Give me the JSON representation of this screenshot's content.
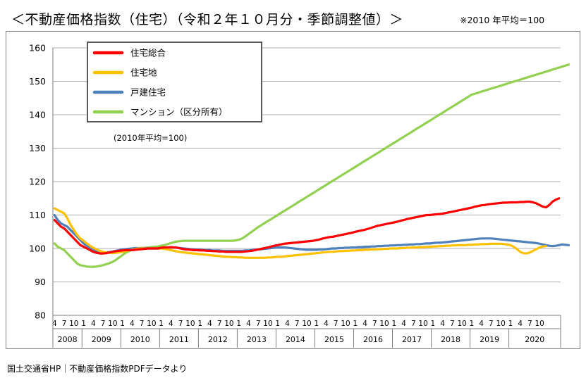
{
  "header": {
    "title": "＜不動産価格指数（住宅）（令和２年１０月分・季節調整値）＞",
    "base_note": "※2010 年平均＝100"
  },
  "footer": {
    "source": "国土交通省HP｜不動産価格指数PDFデータより"
  },
  "chart_data": {
    "type": "line",
    "title": "",
    "inner_note": "(2010年平均=100)",
    "ylim": [
      80,
      160
    ],
    "yticks": [
      80,
      90,
      100,
      110,
      120,
      130,
      140,
      150,
      160
    ],
    "grid": "horizontal",
    "legend_position": "top-left",
    "months_per_year_ticks": [
      "1",
      "4",
      "7",
      "10"
    ],
    "first_month_label": "4",
    "years": [
      "2008",
      "2009",
      "2010",
      "2011",
      "2012",
      "2013",
      "2014",
      "2015",
      "2016",
      "2017",
      "2018",
      "2019",
      "2020"
    ],
    "x_start": "2008-04",
    "x_end": "2020-10",
    "series": [
      {
        "name": "住宅総合",
        "color": "#ff0000",
        "values": [
          108.5,
          107.5,
          106.5,
          106,
          105,
          104,
          103,
          102,
          101,
          100.5,
          100,
          99.5,
          99,
          98.7,
          98.5,
          98.5,
          98.6,
          98.8,
          99,
          99.2,
          99.3,
          99.4,
          99.5,
          99.5,
          99.5,
          99.6,
          99.7,
          99.8,
          99.9,
          100,
          100,
          100,
          100,
          100.2,
          100.3,
          100.3,
          100.4,
          100.3,
          100.2,
          100,
          99.8,
          99.7,
          99.6,
          99.5,
          99.5,
          99.4,
          99.4,
          99.3,
          99.3,
          99.2,
          99.2,
          99.1,
          99.1,
          99,
          99,
          99,
          99,
          99,
          99,
          99.1,
          99.2,
          99.3,
          99.5,
          99.7,
          99.9,
          100.1,
          100.3,
          100.6,
          100.8,
          101,
          101.2,
          101.4,
          101.5,
          101.6,
          101.7,
          101.8,
          101.9,
          102,
          102.1,
          102.2,
          102.3,
          102.5,
          102.7,
          103,
          103.2,
          103.4,
          103.5,
          103.7,
          103.9,
          104.1,
          104.3,
          104.5,
          104.7,
          105,
          105.2,
          105.4,
          105.6,
          105.9,
          106.2,
          106.5,
          106.8,
          107,
          107.2,
          107.4,
          107.6,
          107.8,
          108,
          108.3,
          108.5,
          108.8,
          109,
          109.2,
          109.4,
          109.6,
          109.8,
          110,
          110,
          110.1,
          110.2,
          110.3,
          110.4,
          110.6,
          110.8,
          111,
          111.2,
          111.4,
          111.6,
          111.8,
          112,
          112.2,
          112.5,
          112.7,
          112.9,
          113,
          113.2,
          113.3,
          113.4,
          113.5,
          113.6,
          113.7,
          113.7,
          113.8,
          113.8,
          113.8,
          113.9,
          113.9,
          114,
          114,
          113.8,
          113.5,
          113,
          112.5,
          112.3,
          113,
          114,
          114.6,
          115
        ]
      },
      {
        "name": "住宅地",
        "color": "#ffc000",
        "values": [
          112,
          111.5,
          111,
          110.5,
          109,
          107,
          105.5,
          104,
          103,
          102.3,
          101.5,
          100.8,
          100.2,
          99.7,
          99.3,
          99,
          98.8,
          98.7,
          98.6,
          98.7,
          98.8,
          99,
          99.2,
          99.4,
          99.6,
          99.8,
          100,
          100,
          100,
          100,
          100,
          100,
          100,
          100,
          99.9,
          99.7,
          99.5,
          99.3,
          99.1,
          98.9,
          98.8,
          98.7,
          98.6,
          98.5,
          98.4,
          98.3,
          98.2,
          98.1,
          98,
          97.9,
          97.8,
          97.7,
          97.6,
          97.5,
          97.5,
          97.4,
          97.4,
          97.3,
          97.3,
          97.2,
          97.2,
          97.2,
          97.2,
          97.2,
          97.2,
          97.2,
          97.3,
          97.3,
          97.4,
          97.5,
          97.5,
          97.6,
          97.7,
          97.8,
          97.9,
          98,
          98.1,
          98.2,
          98.3,
          98.4,
          98.5,
          98.6,
          98.7,
          98.8,
          98.9,
          99,
          99,
          99.1,
          99.2,
          99.2,
          99.3,
          99.3,
          99.4,
          99.4,
          99.5,
          99.5,
          99.6,
          99.6,
          99.7,
          99.7,
          99.8,
          99.8,
          99.9,
          99.9,
          100,
          100,
          100,
          100.1,
          100.1,
          100.2,
          100.2,
          100.3,
          100.3,
          100.4,
          100.4,
          100.5,
          100.5,
          100.6,
          100.6,
          100.7,
          100.7,
          100.8,
          100.8,
          100.9,
          100.9,
          101,
          101,
          101,
          101.1,
          101.1,
          101.2,
          101.2,
          101.3,
          101.3,
          101.3,
          101.4,
          101.4,
          101.4,
          101.4,
          101.3,
          101.2,
          101,
          100.5,
          99.8,
          99,
          98.6,
          98.5,
          98.8,
          99.3,
          99.8,
          100.3,
          100.6,
          100.7
        ]
      },
      {
        "name": "戸建住宅",
        "color": "#4f81bd",
        "values": [
          110,
          108.5,
          107.5,
          107,
          106.5,
          105.5,
          104.5,
          103.5,
          102.5,
          101.5,
          100.8,
          100,
          99.5,
          99.2,
          99,
          98.8,
          98.8,
          98.9,
          99.1,
          99.3,
          99.5,
          99.7,
          99.8,
          99.9,
          100,
          100.1,
          100.1,
          100.1,
          100.1,
          100,
          100,
          100,
          100,
          100.1,
          100.2,
          100.3,
          100.3,
          100.3,
          100.2,
          100.1,
          100,
          99.9,
          99.8,
          99.7,
          99.6,
          99.6,
          99.5,
          99.5,
          99.5,
          99.4,
          99.4,
          99.4,
          99.3,
          99.3,
          99.3,
          99.3,
          99.3,
          99.3,
          99.3,
          99.4,
          99.4,
          99.5,
          99.6,
          99.7,
          99.8,
          99.9,
          100,
          100.1,
          100.2,
          100.3,
          100.3,
          100.3,
          100.2,
          100.1,
          100,
          99.9,
          99.8,
          99.7,
          99.6,
          99.6,
          99.6,
          99.6,
          99.7,
          99.7,
          99.8,
          99.9,
          100,
          100,
          100.1,
          100.1,
          100.2,
          100.2,
          100.3,
          100.3,
          100.4,
          100.4,
          100.5,
          100.5,
          100.6,
          100.6,
          100.7,
          100.7,
          100.8,
          100.8,
          100.9,
          100.9,
          101,
          101,
          101.1,
          101.1,
          101.2,
          101.2,
          101.3,
          101.3,
          101.4,
          101.5,
          101.5,
          101.6,
          101.7,
          101.7,
          101.8,
          101.9,
          102,
          102.1,
          102.2,
          102.3,
          102.4,
          102.5,
          102.6,
          102.7,
          102.8,
          102.9,
          103,
          103,
          103,
          103,
          102.9,
          102.8,
          102.7,
          102.6,
          102.5,
          102.4,
          102.3,
          102.2,
          102.1,
          102,
          101.9,
          101.8,
          101.7,
          101.6,
          101.4,
          101.2,
          101,
          100.8,
          100.7,
          100.8,
          101,
          101.2,
          101.1,
          101
        ]
      },
      {
        "name": "マンション（区分所有）",
        "color": "#92d050",
        "values": [
          101.5,
          100.5,
          100,
          99.5,
          98.5,
          97.5,
          96.5,
          95.5,
          95,
          94.8,
          94.6,
          94.5,
          94.5,
          94.6,
          94.8,
          95,
          95.3,
          95.6,
          96,
          96.6,
          97.3,
          98,
          98.7,
          99.2,
          99.6,
          99.8,
          100,
          100.1,
          100.2,
          100.3,
          100.4,
          100.5,
          100.6,
          100.8,
          101,
          101.3,
          101.6,
          101.9,
          102.1,
          102.2,
          102.3,
          102.3,
          102.3,
          102.3,
          102.3,
          102.3,
          102.3,
          102.3,
          102.3,
          102.3,
          102.3,
          102.3,
          102.3,
          102.3,
          102.3,
          102.3,
          102.4,
          102.6,
          103,
          103.6,
          104.3,
          105,
          105.7,
          106.4,
          107,
          107.6,
          108.2,
          108.8,
          109.4,
          110,
          110.6,
          111.2,
          111.8,
          112.4,
          113,
          113.6,
          114.2,
          114.8,
          115.4,
          116,
          116.6,
          117.2,
          117.8,
          118.4,
          119,
          119.6,
          120.2,
          120.8,
          121.4,
          122,
          122.6,
          123.2,
          123.8,
          124.4,
          125,
          125.6,
          126.2,
          126.8,
          127.4,
          128,
          128.6,
          129.2,
          129.8,
          130.4,
          131,
          131.6,
          132.2,
          132.8,
          133.4,
          134,
          134.6,
          135.2,
          135.8,
          136.4,
          137,
          137.6,
          138.2,
          138.8,
          139.4,
          140,
          140.6,
          141.2,
          141.8,
          142.4,
          143,
          143.6,
          144.2,
          144.8,
          145.4,
          146,
          146.3,
          146.6,
          146.9,
          147.2,
          147.5,
          147.8,
          148.1,
          148.4,
          148.7,
          149,
          149.3,
          149.6,
          149.9,
          150.2,
          150.5,
          150.8,
          151.1,
          151.4,
          151.7,
          152,
          152.3,
          152.6,
          152.9,
          153.2,
          153.5,
          153.8,
          154.1,
          154.4,
          154.7,
          155
        ]
      }
    ]
  }
}
